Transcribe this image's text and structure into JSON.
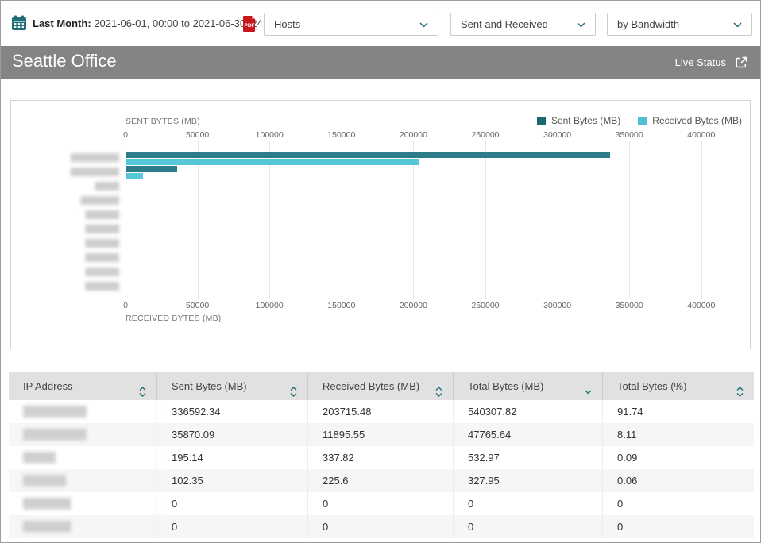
{
  "colors": {
    "accent_teal": "#1F6D78",
    "sent_bar": "#2D7C89",
    "sent_legend": "#186873",
    "received_bar": "#57C6D8",
    "received_legend": "#4FC0D4",
    "pdf_red": "#C8161D",
    "titlebar_gray": "#848484"
  },
  "toolbar": {
    "date_label": "Last Month:",
    "date_range": " 2021-06-01, 00:00 to 2021-06-30, 24:00",
    "pdf_label": "PDF",
    "selects": [
      {
        "value": "Hosts"
      },
      {
        "value": "Sent and Received"
      },
      {
        "value": "by Bandwidth"
      }
    ]
  },
  "header": {
    "title": "Seattle Office",
    "live_status_label": "Live Status"
  },
  "chart_data": {
    "type": "bar",
    "orientation": "horizontal",
    "top_axis_label": "SENT BYTES (MB)",
    "bottom_axis_label": "RECEIVED BYTES (MB)",
    "x_ticks": [
      0,
      50000,
      100000,
      150000,
      200000,
      250000,
      300000,
      350000,
      400000
    ],
    "xlim": [
      0,
      432000
    ],
    "grid": true,
    "legend_position": "top-right",
    "categories": [
      "██████████",
      "██████████",
      "█████",
      "████████",
      "███████",
      "███████",
      "███████",
      "███████",
      "███████",
      "███████"
    ],
    "categories_note": "host IP labels are blurred/redacted in source image",
    "series": [
      {
        "name": "Sent Bytes (MB)",
        "color": "#2D7C89",
        "legend_color": "#186873",
        "values": [
          336592.34,
          35870.09,
          195.14,
          102.35,
          0,
          0,
          0,
          0,
          0,
          0
        ]
      },
      {
        "name": "Received Bytes (MB)",
        "color": "#57C6D8",
        "legend_color": "#4FC0D4",
        "values": [
          203715.48,
          11895.55,
          337.82,
          225.6,
          0,
          0,
          0,
          0,
          0,
          0
        ]
      }
    ]
  },
  "table": {
    "columns": [
      {
        "label": "IP Address",
        "sort": "both"
      },
      {
        "label": "Sent Bytes (MB)",
        "sort": "both"
      },
      {
        "label": "Received Bytes (MB)",
        "sort": "both"
      },
      {
        "label": "Total Bytes (MB)",
        "sort": "down"
      },
      {
        "label": "Total Bytes (%)",
        "sort": "both"
      }
    ],
    "rows": [
      {
        "ip": "████████████",
        "sent": "336592.34",
        "received": "203715.48",
        "total_mb": "540307.82",
        "total_pct": "91.74"
      },
      {
        "ip": "████████████",
        "sent": "35870.09",
        "received": "11895.55",
        "total_mb": "47765.64",
        "total_pct": "8.11"
      },
      {
        "ip": "██████",
        "sent": "195.14",
        "received": "337.82",
        "total_mb": "532.97",
        "total_pct": "0.09"
      },
      {
        "ip": "████████",
        "sent": "102.35",
        "received": "225.6",
        "total_mb": "327.95",
        "total_pct": "0.06"
      },
      {
        "ip": "█████████",
        "sent": "0",
        "received": "0",
        "total_mb": "0",
        "total_pct": "0"
      },
      {
        "ip": "█████████",
        "sent": "0",
        "received": "0",
        "total_mb": "0",
        "total_pct": "0"
      }
    ]
  }
}
